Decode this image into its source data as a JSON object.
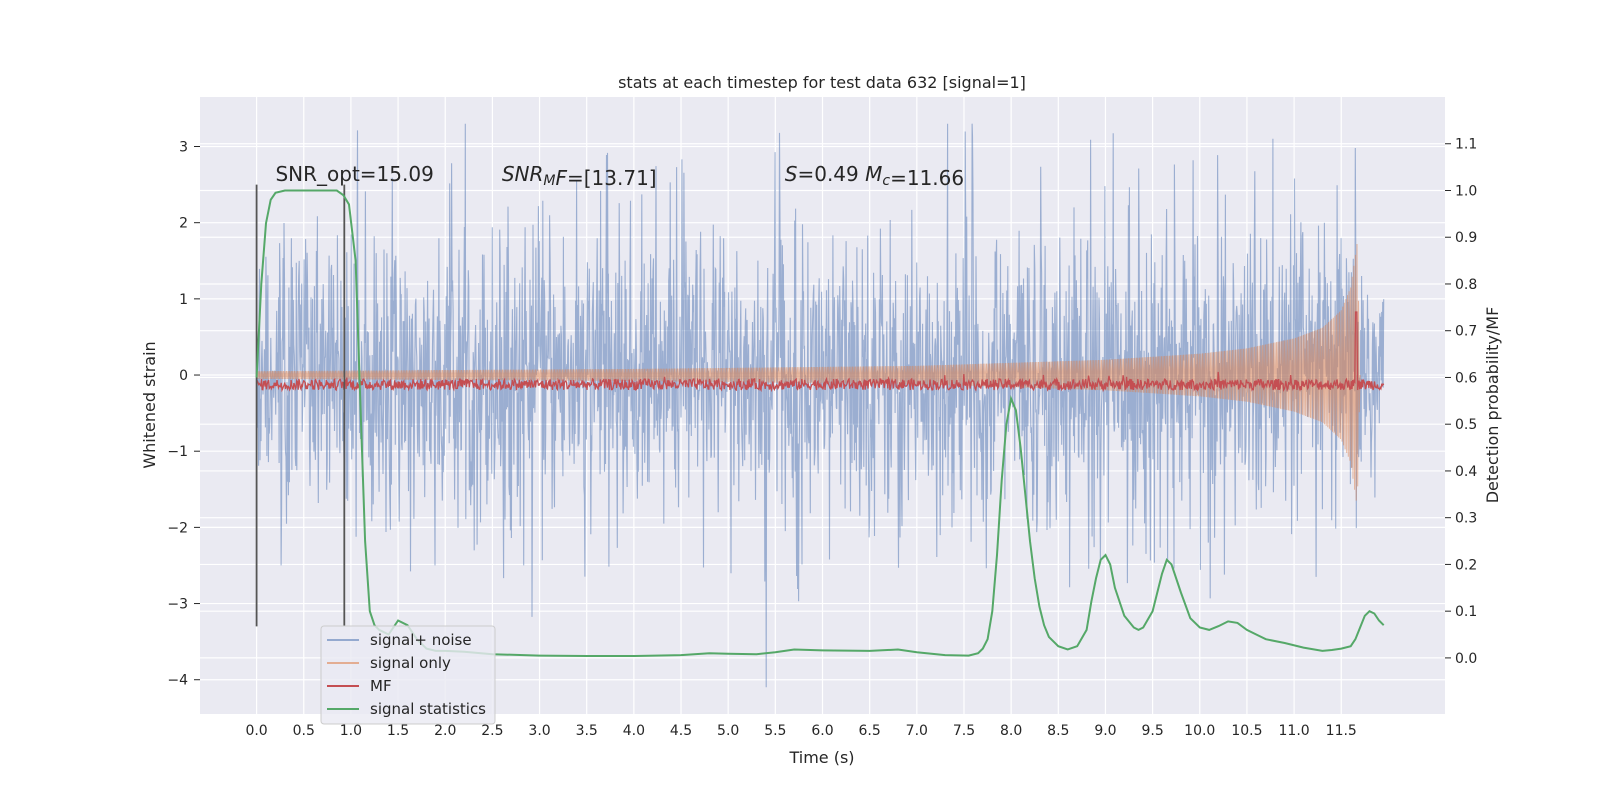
{
  "chart_data": {
    "type": "line",
    "title": "stats at each timestep for test data 632 [signal=1]",
    "xlabel": "Time (s)",
    "ylabel": "Whitened strain",
    "y2label": "Detection probability/MF",
    "xlim": [
      -0.6,
      12.6
    ],
    "ylim": [
      -4.45,
      3.65
    ],
    "y2lim": [
      -0.12,
      1.2
    ],
    "x_ticks": [
      0.0,
      0.5,
      1.0,
      1.5,
      2.0,
      2.5,
      3.0,
      3.5,
      4.0,
      4.5,
      5.0,
      5.5,
      6.0,
      6.5,
      7.0,
      7.5,
      8.0,
      8.5,
      9.0,
      9.5,
      10.0,
      10.5,
      11.0,
      11.5
    ],
    "x_tick_labels": [
      "0.0",
      "0.5",
      "1.0",
      "1.5",
      "2.0",
      "2.5",
      "3.0",
      "3.5",
      "4.0",
      "4.5",
      "5.0",
      "5.5",
      "6.0",
      "6.5",
      "7.0",
      "7.5",
      "8.0",
      "8.5",
      "9.0",
      "9.5",
      "10.0",
      "10.5",
      "11.0",
      "11.5"
    ],
    "y_ticks": [
      3,
      2,
      1,
      0,
      -1,
      -2,
      -3,
      -4
    ],
    "y_tick_labels": [
      "3",
      "2",
      "1",
      "0",
      "−1",
      "−2",
      "−3",
      "−4"
    ],
    "y2_ticks": [
      1.1,
      1.0,
      0.9,
      0.8,
      0.7,
      0.6,
      0.5,
      0.4,
      0.3,
      0.2,
      0.1,
      0.0
    ],
    "y2_tick_labels": [
      "1.1",
      "1.0",
      "0.9",
      "0.8",
      "0.7",
      "0.6",
      "0.5",
      "0.4",
      "0.3",
      "0.2",
      "0.1",
      "0.0"
    ],
    "grid": true,
    "annotations": [
      {
        "parts": [
          {
            "t": "SNR_opt=15.09",
            "i": false
          }
        ],
        "x": 0.2,
        "y": 2.55
      },
      {
        "parts": [
          {
            "t": "SNR",
            "i": true
          },
          {
            "t": "M",
            "i": true,
            "sub": true
          },
          {
            "t": "F",
            "i": true
          },
          {
            "t": "=[13.71]",
            "i": false
          }
        ],
        "x": 2.6,
        "y": 2.55
      },
      {
        "parts": [
          {
            "t": "S",
            "i": true
          },
          {
            "t": "=0.49   ",
            "i": false
          },
          {
            "t": "M",
            "i": true
          },
          {
            "t": "c",
            "i": true,
            "sub": true
          },
          {
            "t": "=11.66",
            "i": false
          }
        ],
        "x": 5.6,
        "y": 2.55
      }
    ],
    "vlines": [
      {
        "x": 0.0,
        "ymin": -3.3,
        "ymax": 2.5
      },
      {
        "x": 0.93,
        "ymin": -3.3,
        "ymax": 2.5
      }
    ],
    "legend_position": "lower-left",
    "series": [
      {
        "name": "signal+ noise",
        "axis": "left",
        "color": "#4c72b0",
        "x_range": [
          0.0,
          11.95
        ],
        "noise_std": 0.95,
        "spike_max": 3.3,
        "spike_min": -4.1
      },
      {
        "name": "signal only",
        "axis": "left",
        "color": "#dd8452",
        "x": [
          0.0,
          4.0,
          7.0,
          9.0,
          10.0,
          10.5,
          11.0,
          11.3,
          11.5,
          11.6,
          11.67,
          11.7
        ],
        "amplitude": [
          0.05,
          0.08,
          0.12,
          0.2,
          0.28,
          0.35,
          0.48,
          0.62,
          0.85,
          1.15,
          1.75,
          0.0
        ]
      },
      {
        "name": "MF",
        "axis": "right",
        "color": "#c44e52",
        "x_range": [
          0.0,
          11.95
        ],
        "base": 0.585,
        "jitter": 0.012,
        "peak_x": 11.66,
        "peak_y": 0.74
      },
      {
        "name": "signal statistics",
        "axis": "right",
        "color": "#55a868",
        "x": [
          0.0,
          0.05,
          0.1,
          0.15,
          0.2,
          0.3,
          0.5,
          0.7,
          0.85,
          0.92,
          0.98,
          1.05,
          1.1,
          1.15,
          1.2,
          1.25,
          1.3,
          1.4,
          1.5,
          1.6,
          1.7,
          1.8,
          1.9,
          2.0,
          2.2,
          2.5,
          3.0,
          3.5,
          4.0,
          4.5,
          4.8,
          5.0,
          5.3,
          5.5,
          5.7,
          6.0,
          6.5,
          6.8,
          7.0,
          7.3,
          7.55,
          7.65,
          7.7,
          7.75,
          7.8,
          7.85,
          7.9,
          7.95,
          8.0,
          8.05,
          8.1,
          8.15,
          8.2,
          8.25,
          8.3,
          8.35,
          8.4,
          8.5,
          8.6,
          8.7,
          8.8,
          8.85,
          8.9,
          8.95,
          9.0,
          9.05,
          9.1,
          9.2,
          9.3,
          9.35,
          9.4,
          9.5,
          9.6,
          9.65,
          9.7,
          9.8,
          9.9,
          10.0,
          10.1,
          10.2,
          10.3,
          10.4,
          10.5,
          10.7,
          10.9,
          11.1,
          11.3,
          11.4,
          11.5,
          11.6,
          11.65,
          11.7,
          11.75,
          11.8,
          11.85,
          11.9,
          11.95
        ],
        "y": [
          0.6,
          0.8,
          0.93,
          0.98,
          0.995,
          1.0,
          1.0,
          1.0,
          1.0,
          0.99,
          0.97,
          0.85,
          0.55,
          0.25,
          0.1,
          0.07,
          0.06,
          0.05,
          0.08,
          0.07,
          0.04,
          0.02,
          0.015,
          0.015,
          0.013,
          0.008,
          0.005,
          0.004,
          0.004,
          0.006,
          0.01,
          0.009,
          0.008,
          0.012,
          0.018,
          0.016,
          0.015,
          0.018,
          0.012,
          0.006,
          0.005,
          0.01,
          0.02,
          0.04,
          0.1,
          0.22,
          0.38,
          0.5,
          0.555,
          0.53,
          0.45,
          0.35,
          0.25,
          0.17,
          0.11,
          0.07,
          0.045,
          0.025,
          0.018,
          0.025,
          0.06,
          0.12,
          0.17,
          0.21,
          0.22,
          0.2,
          0.15,
          0.09,
          0.065,
          0.06,
          0.065,
          0.1,
          0.18,
          0.21,
          0.2,
          0.14,
          0.085,
          0.065,
          0.06,
          0.068,
          0.078,
          0.075,
          0.06,
          0.04,
          0.032,
          0.022,
          0.015,
          0.017,
          0.02,
          0.025,
          0.04,
          0.065,
          0.09,
          0.1,
          0.095,
          0.08,
          0.07
        ]
      }
    ]
  }
}
